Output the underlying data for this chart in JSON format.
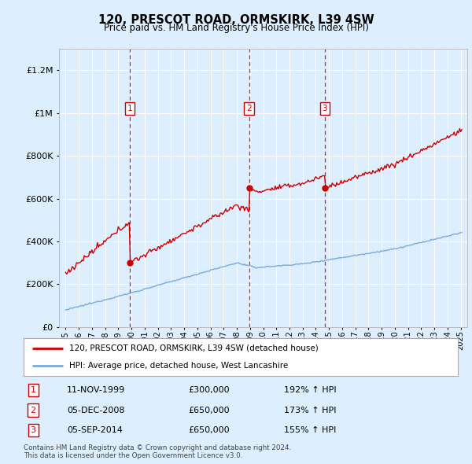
{
  "title": "120, PRESCOT ROAD, ORMSKIRK, L39 4SW",
  "subtitle": "Price paid vs. HM Land Registry's House Price Index (HPI)",
  "legend_line1": "120, PRESCOT ROAD, ORMSKIRK, L39 4SW (detached house)",
  "legend_line2": "HPI: Average price, detached house, West Lancashire",
  "footer_line1": "Contains HM Land Registry data © Crown copyright and database right 2024.",
  "footer_line2": "This data is licensed under the Open Government Licence v3.0.",
  "transactions": [
    {
      "num": 1,
      "date": "11-NOV-1999",
      "price": 300000,
      "hpi_pct": "192% ↑ HPI",
      "x_year": 1999.87
    },
    {
      "num": 2,
      "date": "05-DEC-2008",
      "price": 650000,
      "hpi_pct": "173% ↑ HPI",
      "x_year": 2008.93
    },
    {
      "num": 3,
      "date": "05-SEP-2014",
      "price": 650000,
      "hpi_pct": "155% ↑ HPI",
      "x_year": 2014.68
    }
  ],
  "ylim": [
    0,
    1300000
  ],
  "xlim_start": 1994.5,
  "xlim_end": 2025.5,
  "hpi_color": "#7aaadd",
  "price_color": "#cc0000",
  "dashed_color": "#cc0000",
  "bg_color": "#ddeeff",
  "plot_bg": "#ddeeff",
  "grid_color": "#ffffff",
  "marker_box_color": "#cc0000",
  "title_fontsize": 10.5,
  "subtitle_fontsize": 8.5
}
